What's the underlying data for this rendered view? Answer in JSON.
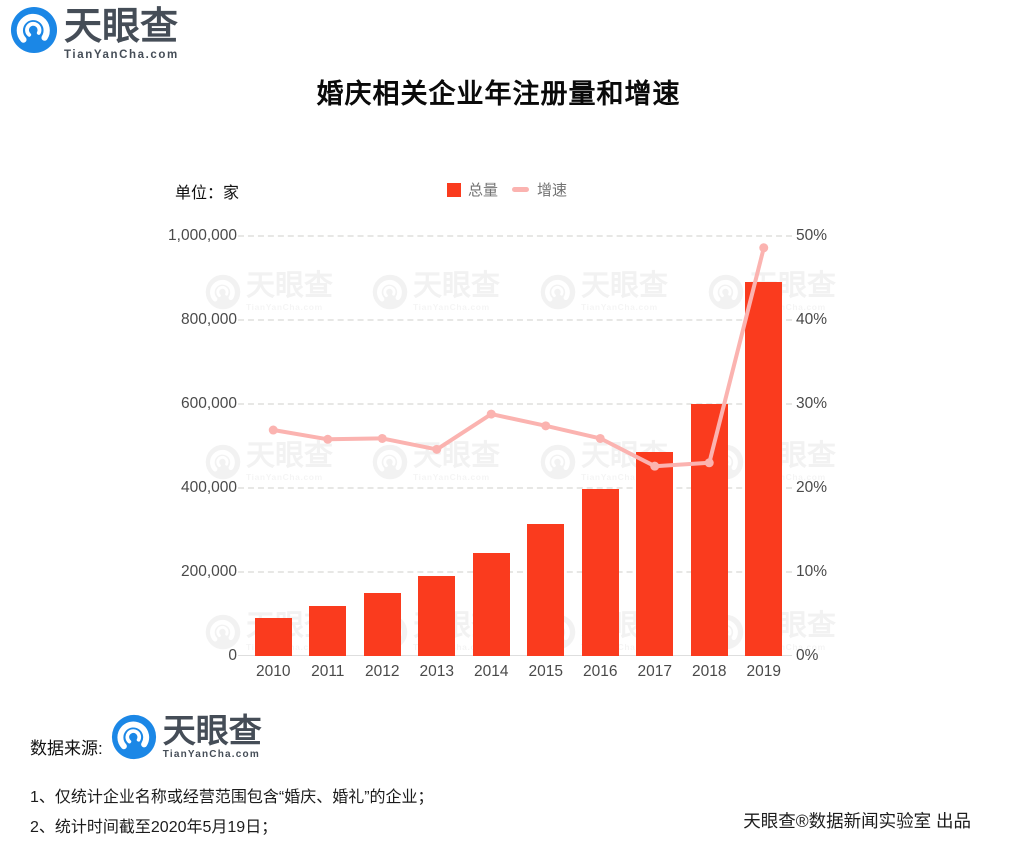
{
  "brand": {
    "logo_text": "天眼查",
    "logo_sub": "TianYanCha.com"
  },
  "title": "婚庆相关企业年注册量和增速",
  "chart": {
    "unit_label": "单位：家",
    "legend": {
      "bar_label": "总量",
      "line_label": "增速"
    }
  },
  "chart_data": {
    "type": "bar",
    "title": "婚庆相关企业年注册量和增速",
    "categories": [
      "2010",
      "2011",
      "2012",
      "2013",
      "2014",
      "2015",
      "2016",
      "2017",
      "2018",
      "2019"
    ],
    "series": [
      {
        "name": "总量",
        "type": "bar",
        "axis": "left",
        "color": "#fa3b1e",
        "values": [
          90000,
          118000,
          150000,
          190000,
          245000,
          315000,
          398000,
          485000,
          600000,
          890000
        ]
      },
      {
        "name": "增速",
        "type": "line",
        "axis": "right",
        "color": "#fbb3b0",
        "values": [
          26.9,
          25.8,
          25.9,
          24.6,
          28.8,
          27.4,
          25.9,
          22.6,
          23.0,
          48.6
        ]
      }
    ],
    "left_axis": {
      "label": "单位：家",
      "min": 0,
      "max": 1000000,
      "tick_labels": [
        "1,000,000",
        "800,000",
        "600,000",
        "400,000",
        "200,000",
        "0"
      ]
    },
    "right_axis": {
      "min": 0,
      "max": 50,
      "tick_labels": [
        "50%",
        "40%",
        "30%",
        "20%",
        "10%",
        "0%"
      ]
    },
    "grid": "horizontal-dashed",
    "legend_position": "top-center"
  },
  "watermark": {
    "text": "天眼查",
    "sub": "TianYanCha.com"
  },
  "footer": {
    "source_label": "数据来源:",
    "notes": [
      "1、仅统计企业名称或经营范围包含“婚庆、婚礼”的企业；",
      "2、统计时间截至2020年5月19日；"
    ],
    "credit": "天眼查®数据新闻实验室 出品"
  },
  "colors": {
    "bar": "#fa3b1e",
    "line": "#fbb3b0",
    "logo_blue": "#1b87e6",
    "logo_dark": "#454d57",
    "axis_text": "#4a4a4a"
  }
}
